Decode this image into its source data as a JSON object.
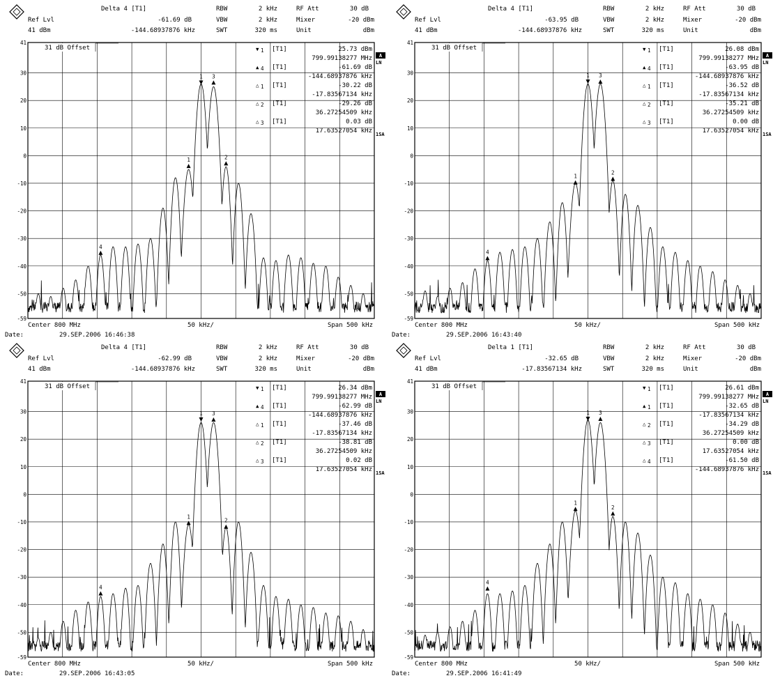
{
  "panels": [
    {
      "header": {
        "delta_title": "Delta 4 [T1]",
        "ref_lvl_label": "Ref Lvl",
        "ref_lvl_value": "41 dBm",
        "delta_value": "-61.69 dB",
        "delta_freq": "-144.68937876 kHz",
        "rbw_label": "RBW",
        "rbw": "2 kHz",
        "vbw_label": "VBW",
        "vbw": "2 kHz",
        "swt_label": "SWT",
        "swt": "320 ms",
        "rfatt_label": "RF Att",
        "rfatt": "30 dB",
        "mixer_label": "Mixer",
        "mixer": "-20 dBm",
        "unit_label": "Unit",
        "unit": "dBm"
      },
      "offset": "31 dB Offset",
      "markers": [
        {
          "sym": "▼",
          "idx": "1",
          "tag": "[T1]",
          "value": "25.73 dBm",
          "freq": "799.99138277 MHz"
        },
        {
          "sym": "▲",
          "idx": "4",
          "tag": "[T1]",
          "value": "-61.69 dB",
          "freq": "-144.68937876 kHz"
        },
        {
          "sym": "△",
          "idx": "1",
          "tag": "[T1]",
          "value": "-30.22 dB",
          "freq": "-17.83567134 kHz"
        },
        {
          "sym": "△",
          "idx": "2",
          "tag": "[T1]",
          "value": "-29.26 dB",
          "freq": "36.27254509 kHz"
        },
        {
          "sym": "△",
          "idx": "3",
          "tag": "[T1]",
          "value": "0.03 dB",
          "freq": "17.63527054 kHz"
        }
      ],
      "footer": {
        "center": "Center 800 MHz",
        "div": "50 kHz/",
        "span": "Span 500 kHz",
        "date_label": "Date:",
        "date": "29.SEP.2006  16:46:38"
      },
      "side": {
        "a": "A",
        "ln": "LN",
        "sa": "1SA"
      }
    },
    {
      "header": {
        "delta_title": "Delta 4 [T1]",
        "ref_lvl_label": "Ref Lvl",
        "ref_lvl_value": "41 dBm",
        "delta_value": "-63.95 dB",
        "delta_freq": "-144.68937876 kHz",
        "rbw_label": "RBW",
        "rbw": "2 kHz",
        "vbw_label": "VBW",
        "vbw": "2 kHz",
        "swt_label": "SWT",
        "swt": "320 ms",
        "rfatt_label": "RF Att",
        "rfatt": "30 dB",
        "mixer_label": "Mixer",
        "mixer": "-20 dBm",
        "unit_label": "Unit",
        "unit": "dBm"
      },
      "offset": "31 dB Offset",
      "markers": [
        {
          "sym": "▼",
          "idx": "1",
          "tag": "[T1]",
          "value": "26.08 dBm",
          "freq": "799.99138277 MHz"
        },
        {
          "sym": "▲",
          "idx": "4",
          "tag": "[T1]",
          "value": "-63.95 dB",
          "freq": "-144.68937876 kHz"
        },
        {
          "sym": "△",
          "idx": "1",
          "tag": "[T1]",
          "value": "-36.52 dB",
          "freq": "-17.83567134 kHz"
        },
        {
          "sym": "△",
          "idx": "2",
          "tag": "[T1]",
          "value": "-35.21 dB",
          "freq": "36.27254509 kHz"
        },
        {
          "sym": "△",
          "idx": "3",
          "tag": "[T1]",
          "value": "0.00 dB",
          "freq": "17.63527054 kHz"
        }
      ],
      "footer": {
        "center": "Center 800 MHz",
        "div": "50 kHz/",
        "span": "Span 500 kHz",
        "date_label": "Date:",
        "date": "29.SEP.2006  16:43:40"
      },
      "side": {
        "a": "A",
        "ln": "LN",
        "sa": "1SA"
      }
    },
    {
      "header": {
        "delta_title": "Delta 4 [T1]",
        "ref_lvl_label": "Ref Lvl",
        "ref_lvl_value": "41 dBm",
        "delta_value": "-62.99 dB",
        "delta_freq": "-144.68937876 kHz",
        "rbw_label": "RBW",
        "rbw": "2 kHz",
        "vbw_label": "VBW",
        "vbw": "2 kHz",
        "swt_label": "SWT",
        "swt": "320 ms",
        "rfatt_label": "RF Att",
        "rfatt": "30 dB",
        "mixer_label": "Mixer",
        "mixer": "-20 dBm",
        "unit_label": "Unit",
        "unit": "dBm"
      },
      "offset": "31 dB Offset",
      "markers": [
        {
          "sym": "▼",
          "idx": "1",
          "tag": "[T1]",
          "value": "26.34 dBm",
          "freq": "799.99138277 MHz"
        },
        {
          "sym": "▲",
          "idx": "4",
          "tag": "[T1]",
          "value": "-62.99 dB",
          "freq": "-144.68937876 kHz"
        },
        {
          "sym": "△",
          "idx": "1",
          "tag": "[T1]",
          "value": "-37.46 dB",
          "freq": "-17.83567134 kHz"
        },
        {
          "sym": "△",
          "idx": "2",
          "tag": "[T1]",
          "value": "-38.81 dB",
          "freq": "36.27254509 kHz"
        },
        {
          "sym": "△",
          "idx": "3",
          "tag": "[T1]",
          "value": "0.02 dB",
          "freq": "17.63527054 kHz"
        }
      ],
      "footer": {
        "center": "Center 800 MHz",
        "div": "50 kHz/",
        "span": "Span 500 kHz",
        "date_label": "Date:",
        "date": "29.SEP.2006  16:43:05"
      },
      "side": {
        "a": "A",
        "ln": "LN",
        "sa": "1SA"
      }
    },
    {
      "header": {
        "delta_title": "Delta 1 [T1]",
        "ref_lvl_label": "Ref Lvl",
        "ref_lvl_value": "41 dBm",
        "delta_value": "-32.65 dB",
        "delta_freq": "-17.83567134 kHz",
        "rbw_label": "RBW",
        "rbw": "2 kHz",
        "vbw_label": "VBW",
        "vbw": "2 kHz",
        "swt_label": "SWT",
        "swt": "320 ms",
        "rfatt_label": "RF Att",
        "rfatt": "30 dB",
        "mixer_label": "Mixer",
        "mixer": "-20 dBm",
        "unit_label": "Unit",
        "unit": "dBm"
      },
      "offset": "31 dB Offset",
      "markers": [
        {
          "sym": "▼",
          "idx": "1",
          "tag": "[T1]",
          "value": "26.61 dBm",
          "freq": "799.99138277 MHz"
        },
        {
          "sym": "▲",
          "idx": "1",
          "tag": "[T1]",
          "value": "-32.65 dB",
          "freq": "-17.83567134 kHz"
        },
        {
          "sym": "△",
          "idx": "2",
          "tag": "[T1]",
          "value": "-34.29 dB",
          "freq": "36.27254509 kHz"
        },
        {
          "sym": "△",
          "idx": "3",
          "tag": "[T1]",
          "value": "0.00 dB",
          "freq": "17.63527054 kHz"
        },
        {
          "sym": "△",
          "idx": "4",
          "tag": "[T1]",
          "value": "-61.50 dB",
          "freq": "-144.68937876 kHz"
        }
      ],
      "footer": {
        "center": "Center 800 MHz",
        "div": "50 kHz/",
        "span": "Span 500 kHz",
        "date_label": "Date:",
        "date": "29.SEP.2006  16:41:49"
      },
      "side": {
        "a": "A",
        "ln": "LN",
        "sa": "1SA"
      }
    }
  ],
  "chart_data": [
    {
      "type": "line",
      "title": "",
      "xlabel": "",
      "ylabel": "",
      "xlim": [
        -250,
        250
      ],
      "ylim": [
        -59,
        41
      ],
      "yticks": [
        41,
        30,
        20,
        10,
        0,
        -10,
        -20,
        -30,
        -40,
        -50,
        -59
      ],
      "grid": true,
      "series": [
        {
          "x": [
            -235,
            -217,
            -199,
            -181,
            -163,
            -145,
            -127,
            -109,
            -91,
            -73,
            -55,
            -37,
            -18,
            0,
            18,
            36,
            54,
            72,
            90,
            108,
            126,
            144,
            162,
            180,
            198,
            216,
            234
          ],
          "y": [
            -50,
            -51,
            -48,
            -45,
            -40,
            -36,
            -33,
            -33,
            -32,
            -30,
            -19,
            -8,
            -5,
            26,
            25,
            -4,
            -10,
            -21,
            -37,
            -38,
            -36,
            -37,
            -39,
            -40,
            -44,
            -47,
            -50
          ]
        }
      ],
      "markers": [
        {
          "label": "1",
          "x": 0,
          "y": 25.73,
          "kind": "down"
        },
        {
          "label": "3",
          "x": 18,
          "y": 25.76,
          "kind": "up"
        },
        {
          "label": "1",
          "x": -18,
          "y": -4.49,
          "kind": "up"
        },
        {
          "label": "2",
          "x": 36,
          "y": -3.53,
          "kind": "up"
        },
        {
          "label": "4",
          "x": -145,
          "y": -35.96,
          "kind": "up"
        }
      ]
    },
    {
      "type": "line",
      "title": "",
      "xlabel": "",
      "ylabel": "",
      "xlim": [
        -250,
        250
      ],
      "ylim": [
        -59,
        41
      ],
      "yticks": [
        41,
        30,
        20,
        10,
        0,
        -10,
        -20,
        -30,
        -40,
        -50,
        -59
      ],
      "grid": true,
      "series": [
        {
          "x": [
            -235,
            -217,
            -199,
            -181,
            -163,
            -145,
            -127,
            -109,
            -91,
            -73,
            -55,
            -37,
            -18,
            0,
            18,
            36,
            54,
            72,
            90,
            108,
            126,
            144,
            162,
            180,
            198,
            216,
            234
          ],
          "y": [
            -49,
            -51,
            -48,
            -46,
            -41,
            -38,
            -35,
            -34,
            -33,
            -30,
            -24,
            -17,
            -10,
            26,
            26,
            -9,
            -14,
            -18,
            -26,
            -33,
            -35,
            -38,
            -40,
            -42,
            -45,
            -47,
            -50
          ]
        }
      ],
      "markers": [
        {
          "label": "1",
          "x": 0,
          "y": 26.08,
          "kind": "down"
        },
        {
          "label": "3",
          "x": 18,
          "y": 26.08,
          "kind": "up"
        },
        {
          "label": "1",
          "x": -18,
          "y": -10.44,
          "kind": "up"
        },
        {
          "label": "2",
          "x": 36,
          "y": -9.13,
          "kind": "up"
        },
        {
          "label": "4",
          "x": -145,
          "y": -37.87,
          "kind": "up"
        }
      ]
    },
    {
      "type": "line",
      "title": "",
      "xlabel": "",
      "ylabel": "",
      "xlim": [
        -250,
        250
      ],
      "ylim": [
        -59,
        41
      ],
      "yticks": [
        41,
        30,
        20,
        10,
        0,
        -10,
        -20,
        -30,
        -40,
        -50,
        -59
      ],
      "grid": true,
      "series": [
        {
          "x": [
            -235,
            -217,
            -199,
            -181,
            -163,
            -145,
            -127,
            -109,
            -91,
            -73,
            -55,
            -37,
            -18,
            0,
            18,
            36,
            54,
            72,
            90,
            108,
            126,
            144,
            162,
            180,
            198,
            216,
            234
          ],
          "y": [
            -52,
            -50,
            -46,
            -42,
            -39,
            -37,
            -36,
            -34,
            -33,
            -25,
            -18,
            -10,
            -11,
            26,
            26,
            -12,
            -10,
            -21,
            -33,
            -37,
            -38,
            -40,
            -41,
            -43,
            -44,
            -46,
            -49
          ]
        }
      ],
      "markers": [
        {
          "label": "1",
          "x": 0,
          "y": 26.34,
          "kind": "down"
        },
        {
          "label": "3",
          "x": 18,
          "y": 26.36,
          "kind": "up"
        },
        {
          "label": "1",
          "x": -18,
          "y": -11.12,
          "kind": "up"
        },
        {
          "label": "2",
          "x": 36,
          "y": -12.47,
          "kind": "up"
        },
        {
          "label": "4",
          "x": -145,
          "y": -36.65,
          "kind": "up"
        }
      ]
    },
    {
      "type": "line",
      "title": "",
      "xlabel": "",
      "ylabel": "",
      "xlim": [
        -250,
        250
      ],
      "ylim": [
        -59,
        41
      ],
      "yticks": [
        41,
        30,
        20,
        10,
        0,
        -10,
        -20,
        -30,
        -40,
        -50,
        -59
      ],
      "grid": true,
      "series": [
        {
          "x": [
            -235,
            -217,
            -199,
            -181,
            -163,
            -145,
            -127,
            -109,
            -91,
            -73,
            -55,
            -37,
            -18,
            0,
            18,
            36,
            54,
            72,
            90,
            108,
            126,
            144,
            162,
            180,
            198,
            216,
            234
          ],
          "y": [
            -51,
            -50,
            -48,
            -46,
            -42,
            -36,
            -36,
            -35,
            -33,
            -25,
            -18,
            -10,
            -6,
            27,
            26,
            -8,
            -10,
            -14,
            -22,
            -30,
            -32,
            -36,
            -38,
            -40,
            -43,
            -47,
            -50
          ]
        }
      ],
      "markers": [
        {
          "label": "1",
          "x": 0,
          "y": 26.61,
          "kind": "down"
        },
        {
          "label": "3",
          "x": 18,
          "y": 26.61,
          "kind": "up"
        },
        {
          "label": "1",
          "x": -18,
          "y": -6.04,
          "kind": "up"
        },
        {
          "label": "2",
          "x": 36,
          "y": -7.68,
          "kind": "up"
        },
        {
          "label": "4",
          "x": -145,
          "y": -34.89,
          "kind": "up"
        }
      ]
    }
  ]
}
